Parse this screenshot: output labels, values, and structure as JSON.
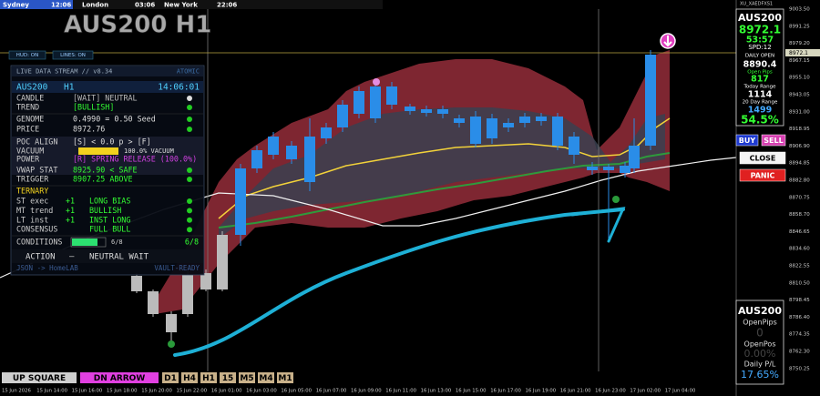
{
  "session_bar": [
    {
      "city": "Sydney",
      "time": "12:06"
    },
    {
      "city": "London",
      "time": "03:06"
    },
    {
      "city": "New York",
      "time": "22:06"
    }
  ],
  "title": "AUS200 H1",
  "toggles": [
    "HUD: ON",
    "LINES: ON"
  ],
  "symbol_code": "XU_XAEDFXS1",
  "price_axis": [
    "9003.50",
    "8991.25",
    "8979.20",
    "8967.15",
    "8955.10",
    "8943.05",
    "8931.00",
    "8918.95",
    "8906.90",
    "8894.85",
    "8882.80",
    "8870.75",
    "8858.70",
    "8846.65",
    "8834.60",
    "8822.55",
    "8810.50",
    "8798.45",
    "8786.40",
    "8774.35",
    "8762.30",
    "8750.25"
  ],
  "current_price": "8972.1",
  "time_axis": [
    "15 Jun 2026",
    "15 Jun 14:00",
    "15 Jun 16:00",
    "15 Jun 18:00",
    "15 Jun 20:00",
    "15 Jun 22:00",
    "16 Jun 01:00",
    "16 Jun 03:00",
    "16 Jun 05:00",
    "16 Jun 07:00",
    "16 Jun 09:00",
    "16 Jun 11:00",
    "16 Jun 13:00",
    "16 Jun 15:00",
    "16 Jun 17:00",
    "16 Jun 19:00",
    "16 Jun 21:00",
    "16 Jun 23:00",
    "17 Jun 02:00",
    "17 Jun 04:00"
  ],
  "hud": {
    "header": "LIVE DATA STREAM // v8.34",
    "mode": "ATOMIC",
    "symbol": "AUS200",
    "timeframe": "H1",
    "clock": "14:06:01",
    "status_rows": [
      {
        "label": "CANDLE",
        "value": "[WAIT] NEUTRAL"
      },
      {
        "label": "TREND",
        "value": "[BULLISH]"
      },
      {
        "label": "GENOME",
        "value": "0.4990 = 0.50 Seed"
      },
      {
        "label": "PRICE",
        "value": "8972.76"
      }
    ],
    "flow_rows": [
      {
        "label": "POC ALIGN",
        "value": "[S] < 0.0 p > [F]"
      },
      {
        "label": "VACUUM",
        "value": "100.0% VACUUM"
      },
      {
        "label": "POWER",
        "value": "[R] SPRING RELEASE (100.0%)"
      },
      {
        "label": "VWAP STAT",
        "value": "8925.90 < SAFE"
      },
      {
        "label": "TRIGGER",
        "value": "8907.25  ABOVE"
      }
    ],
    "ternary_title": "TERNARY",
    "ternary_rows": [
      {
        "label": "ST exec",
        "score": "+1",
        "value": "LONG BIAS"
      },
      {
        "label": "MT trend",
        "score": "+1",
        "value": "BULLISH"
      },
      {
        "label": "LT inst",
        "score": "+1",
        "value": "INST LONG"
      },
      {
        "label": "CONSENSUS",
        "value": "FULL BULL"
      }
    ],
    "conditions": {
      "label": "CONDITIONS",
      "bar_text": "6/8",
      "count": "6/8"
    },
    "action": {
      "label": "ACTION",
      "dash": "—",
      "value": "NEUTRAL WAIT"
    },
    "footer": {
      "left": "JSON -> HomeLAB",
      "right": "VAULT-READY"
    }
  },
  "stats_panel": {
    "symbol": "AUS200",
    "price": "8972.1",
    "timer": "53:57",
    "speed": "SPD:12",
    "daily_open_label": "DAILY OPEN",
    "daily_open": "8890.4",
    "open_pips_label": "Open Pips",
    "open_pips": "817",
    "today_range_label": "Today Range",
    "today_range": "1114",
    "range20_label": "20 Day Range",
    "range20": "1499",
    "percent": "54.5%"
  },
  "trade_buttons": {
    "buy": "BUY",
    "sell": "SELL",
    "close": "CLOSE",
    "panic": "PANIC"
  },
  "pnl_panel": {
    "symbol": "AUS200",
    "open_pips_label": "OpenPips",
    "open_pips": "0",
    "open_pos_label": "OpenPos",
    "open_pos": "0.00%",
    "daily_label": "Daily P/L",
    "daily": "17.65%"
  },
  "bottom_buttons": [
    "UP SQUARE",
    "DN ARROW",
    "D1",
    "H4",
    "H1",
    "15",
    "M5",
    "M4",
    "M1"
  ]
}
